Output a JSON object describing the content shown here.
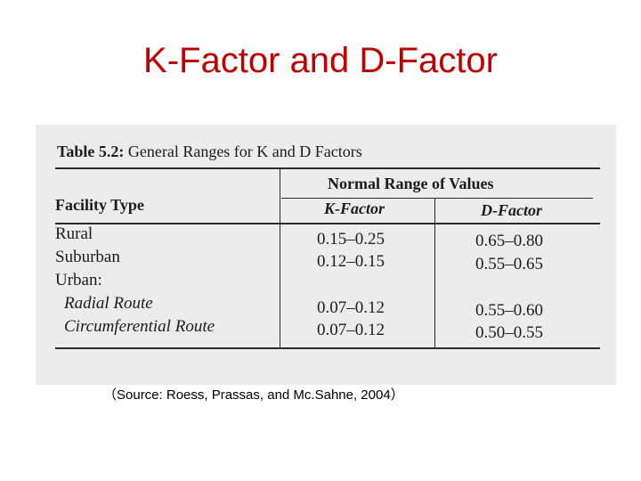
{
  "slide": {
    "title": "K-Factor and D-Factor",
    "source": "（Source: Roess, Prassas, and Mc.Sahne, 2004）"
  },
  "table": {
    "caption_number": "Table 5.2:",
    "caption_text": "General Ranges for K and D Factors",
    "group_header": "Normal Range of Values",
    "col_facility": "Facility Type",
    "col_k": "K-Factor",
    "col_d": "D-Factor",
    "rows": [
      {
        "label": "Rural",
        "k": "0.15–0.25",
        "d": "0.65–0.80"
      },
      {
        "label": "Suburban",
        "k": "0.12–0.15",
        "d": "0.55–0.65"
      },
      {
        "label": "Urban:",
        "k": "",
        "d": ""
      },
      {
        "label": "Radial Route",
        "k": "0.07–0.12",
        "d": "0.55–0.60"
      },
      {
        "label": "Circumferential Route",
        "k": "0.07–0.12",
        "d": "0.50–0.55"
      }
    ]
  }
}
